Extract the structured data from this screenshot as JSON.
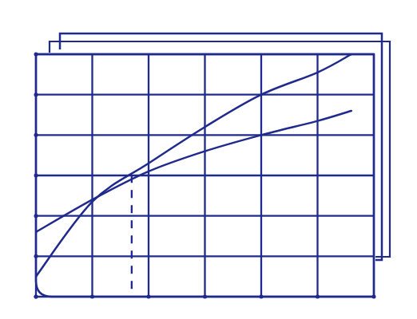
{
  "chart_data": {
    "type": "line",
    "x": [
      0,
      1,
      2,
      3,
      4,
      5,
      5.6
    ],
    "series": [
      {
        "color": "#1f2a8c",
        "values": [
          0.5,
          2.35,
          3.3,
          4.2,
          5.0,
          5.55,
          6.0
        ]
      },
      {
        "color": "#1f2a8c",
        "values": [
          1.6,
          2.4,
          3.1,
          3.6,
          4.0,
          4.35,
          4.6
        ]
      }
    ],
    "vline_x": 1.7,
    "xlim": [
      0,
      6
    ],
    "ylim": [
      0,
      6
    ],
    "xticks": [
      0,
      1,
      2,
      3,
      4,
      5,
      6
    ],
    "yticks": [
      0,
      1,
      2,
      3,
      4,
      5,
      6
    ],
    "grid": true,
    "tick_labels": false
  }
}
